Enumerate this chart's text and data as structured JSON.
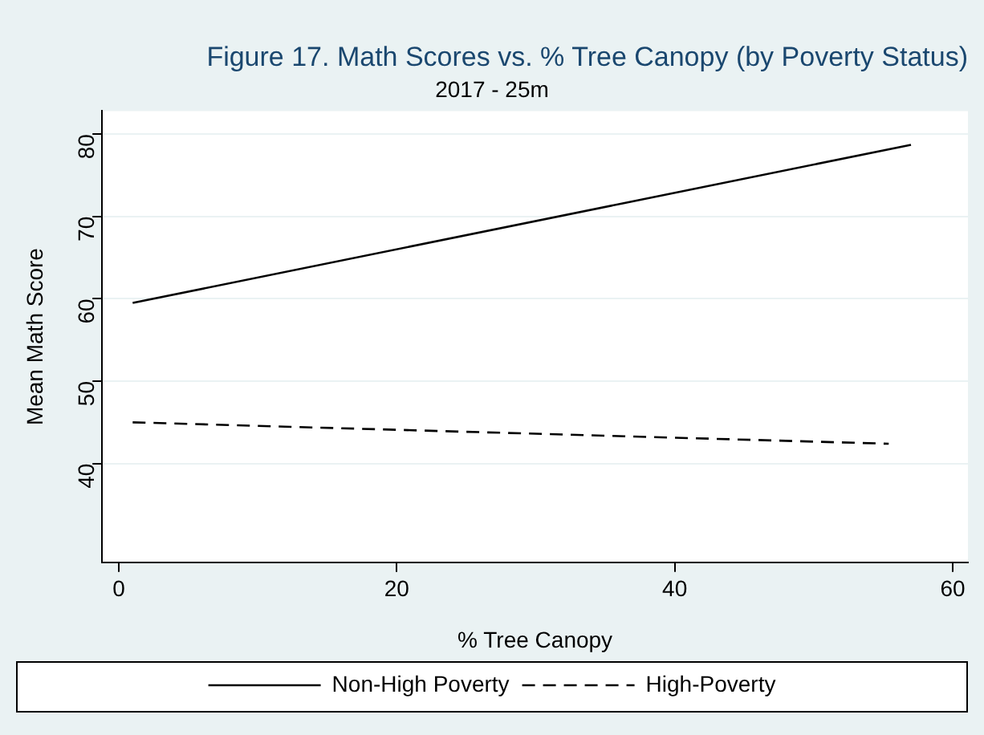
{
  "chart_data": {
    "type": "line",
    "title": "Figure 17. Math Scores vs. % Tree Canopy (by Poverty Status)",
    "subtitle": "2017 - 25m",
    "xlabel": "% Tree Canopy",
    "ylabel": "Mean Math Score",
    "xlim": [
      -1.2,
      61.1
    ],
    "xticks": [
      0,
      20,
      40,
      60
    ],
    "ylim": [
      28,
      82.8
    ],
    "yticks": [
      40,
      50,
      60,
      70,
      80
    ],
    "grid": "y",
    "legend": "bottom",
    "marker": "none",
    "series": [
      {
        "name": "Non-High Poverty",
        "color": "#000000",
        "line_style": "solid",
        "x": [
          1,
          57
        ],
        "values": [
          59.5,
          78.7
        ]
      },
      {
        "name": "High-Poverty",
        "color": "#000000",
        "line_style": "dashed",
        "x": [
          1,
          55.4
        ],
        "values": [
          45.0,
          42.4
        ]
      }
    ]
  }
}
